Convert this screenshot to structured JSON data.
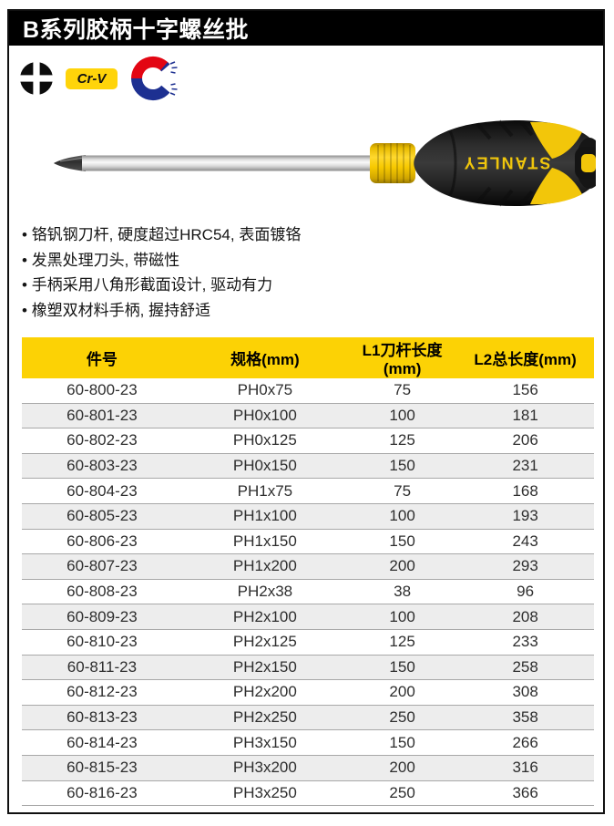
{
  "page_title": "B系列胶柄十字螺丝批",
  "badges": {
    "crv_label": "Cr-V",
    "icon_names": [
      "phillips-head-icon",
      "crv-badge",
      "magnet-icon"
    ]
  },
  "product": {
    "brand": "STANLEY"
  },
  "features": [
    "铬钒钢刀杆, 硬度超过HRC54, 表面镀铬",
    "发黑处理刀头, 带磁性",
    "手柄采用八角形截面设计, 驱动有力",
    "橡塑双材料手柄, 握持舒适"
  ],
  "table": {
    "headers": [
      "件号",
      "规格(mm)",
      "L1刀杆长度(mm)",
      "L2总长度(mm)"
    ],
    "rows": [
      {
        "part": "60-800-23",
        "spec": "PH0x75",
        "l1": "75",
        "l2": "156"
      },
      {
        "part": "60-801-23",
        "spec": "PH0x100",
        "l1": "100",
        "l2": "181"
      },
      {
        "part": "60-802-23",
        "spec": "PH0x125",
        "l1": "125",
        "l2": "206"
      },
      {
        "part": "60-803-23",
        "spec": "PH0x150",
        "l1": "150",
        "l2": "231"
      },
      {
        "part": "60-804-23",
        "spec": "PH1x75",
        "l1": "75",
        "l2": "168"
      },
      {
        "part": "60-805-23",
        "spec": "PH1x100",
        "l1": "100",
        "l2": "193"
      },
      {
        "part": "60-806-23",
        "spec": "PH1x150",
        "l1": "150",
        "l2": "243"
      },
      {
        "part": "60-807-23",
        "spec": "PH1x200",
        "l1": "200",
        "l2": "293"
      },
      {
        "part": "60-808-23",
        "spec": "PH2x38",
        "l1": "38",
        "l2": "96"
      },
      {
        "part": "60-809-23",
        "spec": "PH2x100",
        "l1": "100",
        "l2": "208"
      },
      {
        "part": "60-810-23",
        "spec": "PH2x125",
        "l1": "125",
        "l2": "233"
      },
      {
        "part": "60-811-23",
        "spec": "PH2x150",
        "l1": "150",
        "l2": "258"
      },
      {
        "part": "60-812-23",
        "spec": "PH2x200",
        "l1": "200",
        "l2": "308"
      },
      {
        "part": "60-813-23",
        "spec": "PH2x250",
        "l1": "250",
        "l2": "358"
      },
      {
        "part": "60-814-23",
        "spec": "PH3x150",
        "l1": "150",
        "l2": "266"
      },
      {
        "part": "60-815-23",
        "spec": "PH3x200",
        "l1": "200",
        "l2": "316"
      },
      {
        "part": "60-816-23",
        "spec": "PH3x250",
        "l1": "250",
        "l2": "366"
      }
    ]
  },
  "colors": {
    "accent_yellow": "#fcd205",
    "badge_yellow": "#ffd40a",
    "row_alt_gray": "#ededed",
    "magnet_red": "#e30613",
    "magnet_blue": "#1d3091",
    "title_bar": "#000000"
  }
}
